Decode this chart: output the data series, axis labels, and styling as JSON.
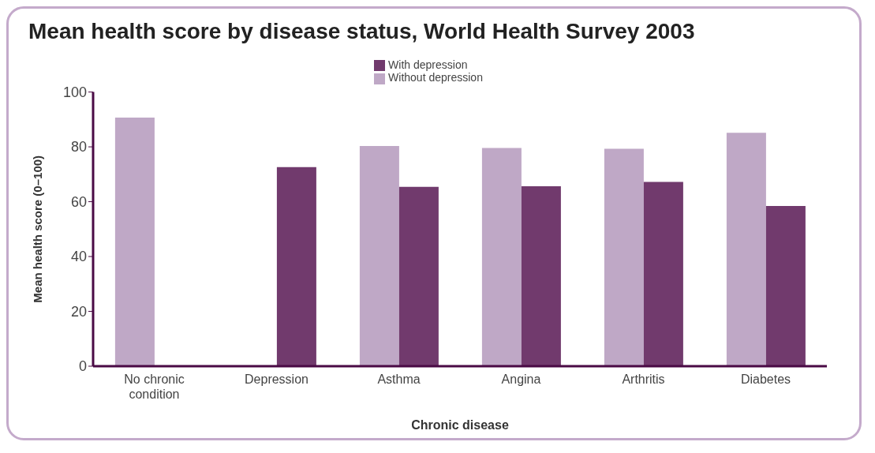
{
  "chart_data": {
    "type": "bar",
    "title": "Mean health score by disease status, World Health Survey 2003",
    "xlabel": "Chronic disease",
    "ylabel": "Mean health score (0–100)",
    "categories": [
      "No chronic condition",
      "Depression",
      "Asthma",
      "Angina",
      "Arthritis",
      "Diabetes"
    ],
    "series": [
      {
        "name": "Without depression",
        "color": "#bfa8c6",
        "values": [
          90.7,
          null,
          80.3,
          79.6,
          79.3,
          85.1
        ]
      },
      {
        "name": "With depression",
        "color": "#713a6d",
        "values": [
          null,
          72.6,
          65.4,
          65.6,
          67.2,
          58.4
        ]
      }
    ],
    "ylim": [
      0,
      100
    ],
    "yticks": [
      0,
      20,
      40,
      60,
      80,
      100
    ],
    "grid": false,
    "legend": "top"
  }
}
